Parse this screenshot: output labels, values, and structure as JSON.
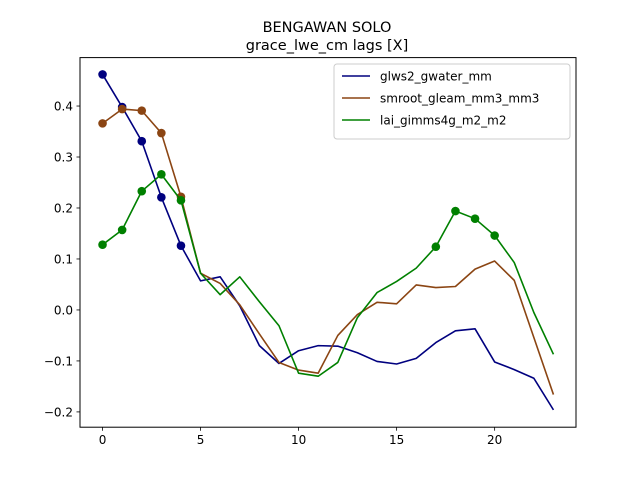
{
  "chart_data": {
    "type": "line",
    "title": "BENGAWAN SOLO",
    "subtitle": "grace_lwe_cm lags [X]",
    "xlabel": "",
    "ylabel": "",
    "xlim": [
      -1.15,
      24.15
    ],
    "ylim": [
      -0.23,
      0.495
    ],
    "xticks": [
      0,
      5,
      10,
      15,
      20
    ],
    "yticks": [
      -0.2,
      -0.1,
      0.0,
      0.1,
      0.2,
      0.3,
      0.4
    ],
    "ytick_labels": [
      "−0.2",
      "−0.1",
      "0.0",
      "0.1",
      "0.2",
      "0.3",
      "0.4"
    ],
    "xtick_labels": [
      "0",
      "5",
      "10",
      "15",
      "20"
    ],
    "grid": false,
    "legend_position": "top-right",
    "x": [
      0,
      1,
      2,
      3,
      4,
      5,
      6,
      7,
      8,
      9,
      10,
      11,
      12,
      13,
      14,
      15,
      16,
      17,
      18,
      19,
      20,
      21,
      22,
      23
    ],
    "series": [
      {
        "name": "glws2_gwater_mm",
        "color": "#00007f",
        "values": [
          0.462,
          0.398,
          0.331,
          0.221,
          0.126,
          0.057,
          0.065,
          0.008,
          -0.07,
          -0.105,
          -0.08,
          -0.07,
          -0.071,
          -0.084,
          -0.101,
          -0.106,
          -0.095,
          -0.064,
          -0.041,
          -0.037,
          -0.102,
          -0.117,
          -0.134,
          -0.196
        ],
        "marker_x": [
          0,
          1,
          2,
          3,
          4
        ]
      },
      {
        "name": "smroot_gleam_mm3_mm3",
        "color": "#8b4513",
        "values": [
          0.366,
          0.394,
          0.391,
          0.347,
          0.222,
          0.072,
          0.052,
          0.01,
          -0.047,
          -0.103,
          -0.118,
          -0.124,
          -0.05,
          -0.009,
          0.015,
          0.012,
          0.049,
          0.044,
          0.046,
          0.08,
          0.096,
          0.058,
          -0.054,
          -0.166
        ],
        "marker_x": [
          0,
          1,
          2,
          3,
          4
        ]
      },
      {
        "name": "lai_gimms4g_m2_m2",
        "color": "#008000",
        "values": [
          0.128,
          0.157,
          0.233,
          0.266,
          0.215,
          0.072,
          0.03,
          0.065,
          0.016,
          -0.031,
          -0.124,
          -0.13,
          -0.103,
          -0.015,
          0.034,
          0.056,
          0.082,
          0.124,
          0.194,
          0.179,
          0.146,
          0.093,
          -0.005,
          -0.087
        ],
        "marker_x": [
          0,
          1,
          2,
          3,
          4,
          17,
          18,
          19,
          20
        ]
      }
    ]
  }
}
